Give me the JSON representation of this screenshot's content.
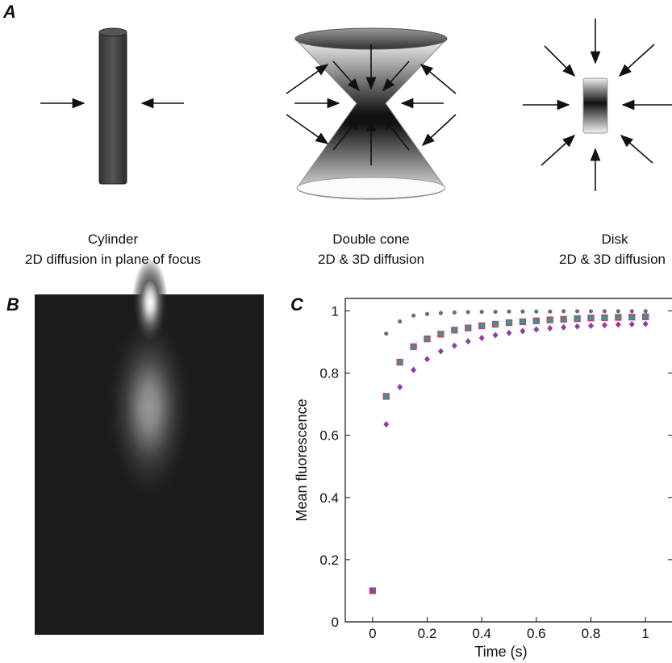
{
  "panels": {
    "a": {
      "label": "A",
      "captions": [
        {
          "title": "Cylinder",
          "subtitle": "2D diffusion in plane of focus"
        },
        {
          "title": "Double cone",
          "subtitle": "2D & 3D diffusion"
        },
        {
          "title": "Disk",
          "subtitle": "2D & 3D diffusion"
        }
      ]
    },
    "b": {
      "label": "B"
    },
    "c": {
      "label": "C"
    }
  },
  "chart_data": {
    "type": "scatter",
    "x_label": "Time (s)",
    "y_label": "Mean fluorescence",
    "x": [
      0,
      0.05,
      0.1,
      0.15,
      0.2,
      0.25,
      0.3,
      0.35,
      0.4,
      0.45,
      0.5,
      0.55,
      0.6,
      0.65,
      0.7,
      0.75,
      0.8,
      0.85,
      0.9,
      0.95,
      1.0
    ],
    "series": [
      {
        "color": "#6e6e6e",
        "marker": "circle",
        "values": [
          0.1,
          0.927,
          0.966,
          0.985,
          0.99,
          0.993,
          0.995,
          0.996,
          0.997,
          0.997,
          0.998,
          0.998,
          0.998,
          0.998,
          0.999,
          0.999,
          0.999,
          0.999,
          0.999,
          0.999,
          0.999
        ]
      },
      {
        "color": "#2a9d8f",
        "edgecolor": "#d2386c",
        "marker": "square",
        "values": [
          0.1,
          0.725,
          0.835,
          0.885,
          0.91,
          0.925,
          0.938,
          0.945,
          0.952,
          0.957,
          0.962,
          0.965,
          0.968,
          0.971,
          0.973,
          0.975,
          0.977,
          0.978,
          0.979,
          0.98,
          0.981
        ]
      },
      {
        "color": "#8b3fa8",
        "marker": "diamond",
        "values": [
          0.1,
          0.635,
          0.755,
          0.81,
          0.845,
          0.87,
          0.888,
          0.902,
          0.913,
          0.922,
          0.929,
          0.935,
          0.94,
          0.944,
          0.947,
          0.95,
          0.952,
          0.954,
          0.956,
          0.957,
          0.958
        ]
      }
    ],
    "xlim": [
      -0.1,
      1.1
    ],
    "ylim": [
      0,
      1.04
    ],
    "xticks": [
      0,
      0.2,
      0.4,
      0.6,
      0.8,
      1
    ],
    "yticks": [
      0,
      0.2,
      0.4,
      0.6,
      0.8,
      1
    ]
  }
}
